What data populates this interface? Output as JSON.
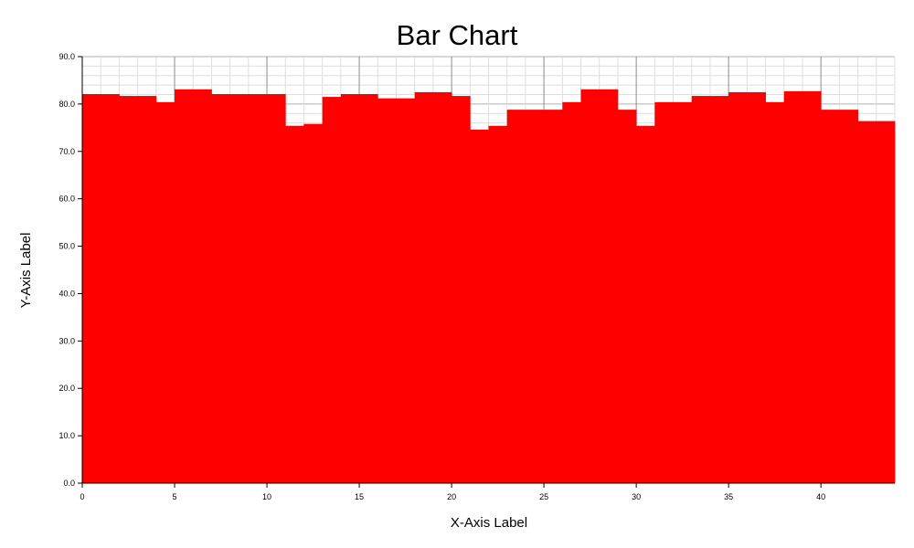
{
  "chart_data": {
    "type": "bar",
    "title": "Bar Chart",
    "xlabel": "X-Axis Label",
    "ylabel": "Y-Axis Label",
    "xlim": [
      0,
      44
    ],
    "ylim": [
      0,
      90
    ],
    "x_ticks": [
      0,
      5,
      10,
      15,
      20,
      25,
      30,
      35,
      40
    ],
    "x_tick_labels": [
      "0",
      "5",
      "10",
      "15",
      "20",
      "25",
      "30",
      "35",
      "40"
    ],
    "y_ticks": [
      0,
      10,
      20,
      30,
      40,
      50,
      60,
      70,
      80,
      90
    ],
    "y_tick_labels": [
      "0.0",
      "10.0",
      "20.0",
      "30.0",
      "40.0",
      "50.0",
      "60.0",
      "70.0",
      "80.0",
      "90.0"
    ],
    "grid": true,
    "legend": "none",
    "bar_color": "#ff0000",
    "bars": [
      {
        "x_start": 0,
        "x_end": 2,
        "value": 82.1
      },
      {
        "x_start": 2,
        "x_end": 4,
        "value": 81.7
      },
      {
        "x_start": 4,
        "x_end": 5,
        "value": 80.4
      },
      {
        "x_start": 5,
        "x_end": 7,
        "value": 83.1
      },
      {
        "x_start": 7,
        "x_end": 11,
        "value": 82.1
      },
      {
        "x_start": 11,
        "x_end": 12,
        "value": 75.4
      },
      {
        "x_start": 12,
        "x_end": 13,
        "value": 75.8
      },
      {
        "x_start": 13,
        "x_end": 14,
        "value": 81.5
      },
      {
        "x_start": 14,
        "x_end": 16,
        "value": 82.1
      },
      {
        "x_start": 16,
        "x_end": 18,
        "value": 81.2
      },
      {
        "x_start": 18,
        "x_end": 20,
        "value": 82.5
      },
      {
        "x_start": 20,
        "x_end": 21,
        "value": 81.7
      },
      {
        "x_start": 21,
        "x_end": 22,
        "value": 74.6
      },
      {
        "x_start": 22,
        "x_end": 23,
        "value": 75.4
      },
      {
        "x_start": 23,
        "x_end": 26,
        "value": 78.8
      },
      {
        "x_start": 26,
        "x_end": 27,
        "value": 80.4
      },
      {
        "x_start": 27,
        "x_end": 29,
        "value": 83.1
      },
      {
        "x_start": 29,
        "x_end": 30,
        "value": 78.8
      },
      {
        "x_start": 30,
        "x_end": 31,
        "value": 75.4
      },
      {
        "x_start": 31,
        "x_end": 33,
        "value": 80.4
      },
      {
        "x_start": 33,
        "x_end": 35,
        "value": 81.7
      },
      {
        "x_start": 35,
        "x_end": 37,
        "value": 82.5
      },
      {
        "x_start": 37,
        "x_end": 38,
        "value": 80.4
      },
      {
        "x_start": 38,
        "x_end": 40,
        "value": 82.7
      },
      {
        "x_start": 40,
        "x_end": 42,
        "value": 78.8
      },
      {
        "x_start": 42,
        "x_end": 44,
        "value": 76.4
      }
    ]
  }
}
